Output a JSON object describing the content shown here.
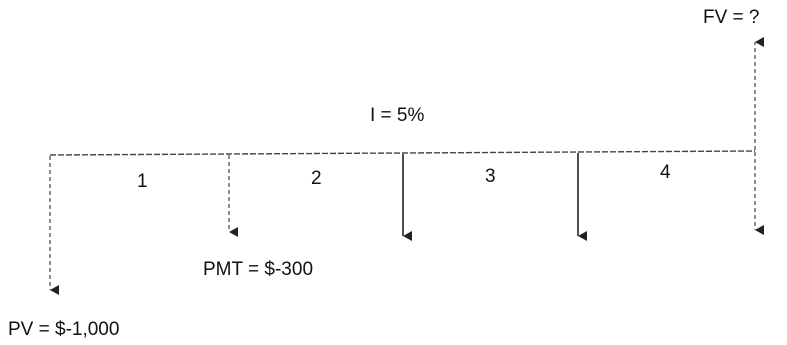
{
  "diagram": {
    "interest_label": "I = 5%",
    "future_value_label": "FV = ?",
    "payment_label": "PMT = $-300",
    "present_value_label": "PV = $-1,000",
    "periods": [
      "1",
      "2",
      "3",
      "4"
    ]
  },
  "colors": {
    "ink": "#222222",
    "background": "#ffffff"
  }
}
